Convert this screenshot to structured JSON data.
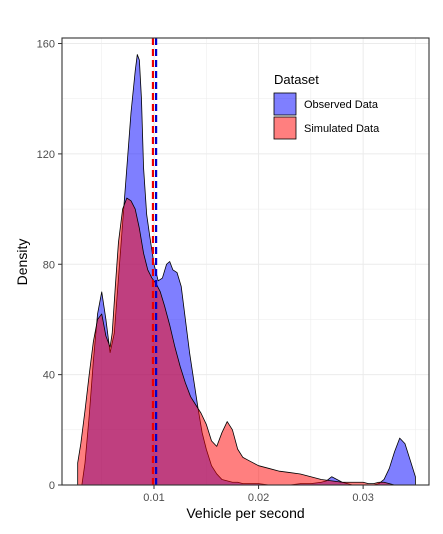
{
  "chart_data": {
    "type": "area",
    "title": "",
    "xlabel": "Vehicle per second",
    "ylabel": "Density",
    "xlim": [
      0.0012,
      0.0363
    ],
    "ylim": [
      0,
      162
    ],
    "x_ticks": [
      0.01,
      0.02,
      0.03
    ],
    "x_tick_labels": [
      "0.01",
      "0.02",
      "0.03"
    ],
    "y_ticks": [
      0,
      40,
      80,
      120,
      160
    ],
    "y_tick_labels": [
      "0",
      "40",
      "80",
      "120",
      "160"
    ],
    "grid": true,
    "legend": {
      "title": "Dataset",
      "position": "top-right",
      "entries": [
        {
          "label": "Observed Data",
          "color": "#0000ff",
          "opacity": 0.5
        },
        {
          "label": "Simulated Data",
          "color": "#ff0000",
          "opacity": 0.5
        }
      ]
    },
    "series": [
      {
        "name": "Observed Data",
        "color": "#0000ff",
        "fill_opacity": 0.5,
        "mean_line": 0.0102,
        "mean_line_color": "#0000cc",
        "x": [
          0.0031,
          0.0034,
          0.0038,
          0.0042,
          0.0046,
          0.005,
          0.0054,
          0.0058,
          0.0062,
          0.0066,
          0.007,
          0.0074,
          0.0078,
          0.0082,
          0.0084,
          0.0086,
          0.0088,
          0.009,
          0.0093,
          0.0096,
          0.01,
          0.0104,
          0.0108,
          0.0112,
          0.0115,
          0.0118,
          0.0122,
          0.0126,
          0.013,
          0.0134,
          0.0138,
          0.0142,
          0.0146,
          0.015,
          0.0155,
          0.016,
          0.0165,
          0.017,
          0.0175,
          0.018,
          0.0185,
          0.019,
          0.0195,
          0.02,
          0.021,
          0.022,
          0.023,
          0.024,
          0.025,
          0.026,
          0.0265,
          0.027,
          0.0275,
          0.028,
          0.0285,
          0.029,
          0.03,
          0.031,
          0.0315,
          0.032,
          0.0325,
          0.033,
          0.0335,
          0.034,
          0.0345,
          0.035
        ],
        "y": [
          0,
          8,
          25,
          45,
          62,
          70,
          60,
          48,
          55,
          75,
          95,
          115,
          135,
          150,
          156,
          154,
          140,
          115,
          98,
          90,
          80,
          74,
          75,
          80,
          81,
          78,
          77,
          72,
          60,
          48,
          38,
          28,
          19,
          13,
          7,
          4,
          2,
          1.5,
          1,
          1,
          0.5,
          0.5,
          0.5,
          0.5,
          0,
          0,
          0,
          0.5,
          0.5,
          1,
          1.5,
          3,
          2,
          1,
          0.5,
          0,
          0,
          0,
          0.5,
          2,
          6,
          12,
          17,
          15,
          9,
          3
        ]
      },
      {
        "name": "Simulated Data",
        "color": "#ff0000",
        "fill_opacity": 0.5,
        "mean_line": 0.0099,
        "mean_line_color": "#ee0000",
        "x": [
          0.0027,
          0.003,
          0.0034,
          0.0038,
          0.0042,
          0.0046,
          0.005,
          0.0054,
          0.0058,
          0.006,
          0.0063,
          0.0066,
          0.007,
          0.0074,
          0.0078,
          0.0082,
          0.0086,
          0.009,
          0.0094,
          0.0098,
          0.0102,
          0.0106,
          0.011,
          0.0115,
          0.012,
          0.0125,
          0.013,
          0.0135,
          0.014,
          0.0145,
          0.015,
          0.0155,
          0.016,
          0.0165,
          0.017,
          0.0175,
          0.018,
          0.0185,
          0.019,
          0.0195,
          0.02,
          0.021,
          0.022,
          0.023,
          0.024,
          0.025,
          0.026,
          0.027,
          0.028,
          0.029,
          0.03,
          0.0305,
          0.031,
          0.0315,
          0.032,
          0.0325,
          0.033
        ],
        "y": [
          8,
          15,
          27,
          40,
          52,
          60,
          62,
          54,
          50,
          55,
          72,
          88,
          100,
          104,
          103,
          100,
          93,
          84,
          78,
          75,
          73,
          70,
          65,
          58,
          50,
          43,
          37,
          32,
          29,
          26,
          22,
          16,
          14,
          19,
          23,
          20,
          13,
          10,
          9,
          8,
          7,
          6,
          5,
          4.5,
          4,
          3,
          2,
          1.5,
          1,
          1,
          1,
          0.5,
          0.5,
          1,
          1,
          0.5,
          0
        ]
      }
    ]
  }
}
